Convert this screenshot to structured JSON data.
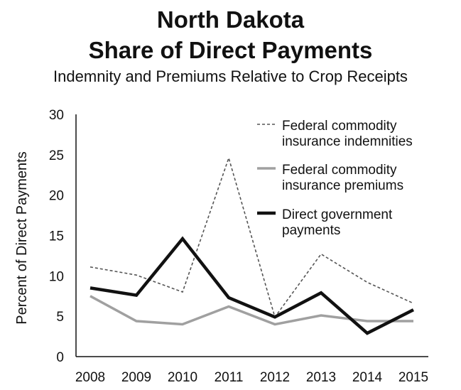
{
  "chart_data": {
    "type": "line",
    "title_line1": "North Dakota",
    "title_line2": "Share of Direct Payments",
    "subtitle": "Indemnity and Premiums Relative to Crop Receipts",
    "ylabel": "Percent of Direct Payments",
    "xlabel": "",
    "categories": [
      "2008",
      "2009",
      "2010",
      "2011",
      "2012",
      "2013",
      "2014",
      "2015"
    ],
    "ylim": [
      0,
      30
    ],
    "yticks": [
      "0",
      "5",
      "10",
      "15",
      "20",
      "25",
      "30"
    ],
    "grid": false,
    "legend_position": "top-right",
    "series": [
      {
        "name_lines": [
          "Federal commodity",
          "insurance indemnities"
        ],
        "values": [
          11.1,
          10.1,
          8.0,
          24.6,
          4.9,
          12.7,
          9.2,
          6.6
        ],
        "color": "#555555",
        "style": "dashed"
      },
      {
        "name_lines": [
          "Federal commodity",
          "insurance premiums"
        ],
        "values": [
          7.5,
          4.4,
          4.0,
          6.2,
          4.0,
          5.1,
          4.4,
          4.4
        ],
        "color": "#a0a0a0",
        "style": "solid"
      },
      {
        "name_lines": [
          "Direct government",
          "payments"
        ],
        "values": [
          8.5,
          7.6,
          14.6,
          7.3,
          4.9,
          7.9,
          2.9,
          5.8
        ],
        "color": "#111111",
        "style": "solid-thick"
      }
    ]
  }
}
